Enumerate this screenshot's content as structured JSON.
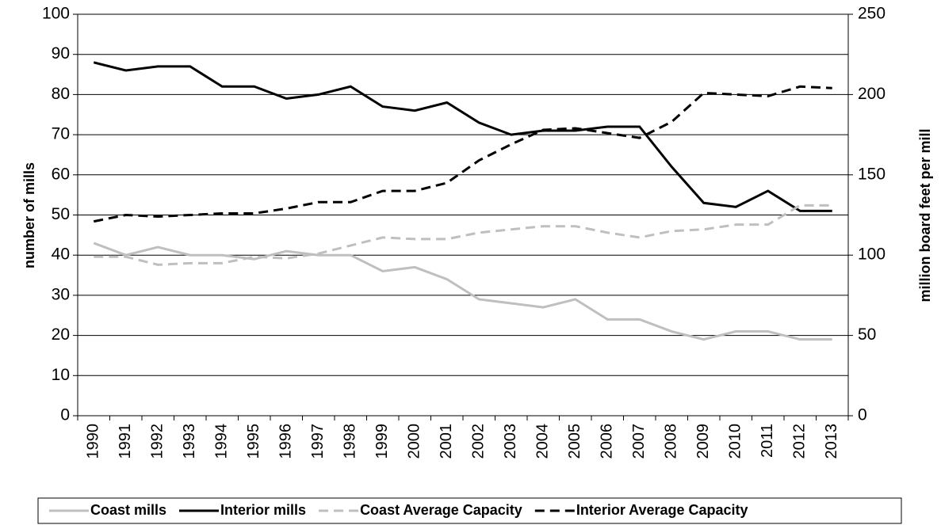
{
  "chart_data": {
    "type": "line",
    "categories": [
      "1990",
      "1991",
      "1992",
      "1993",
      "1994",
      "1995",
      "1996",
      "1997",
      "1998",
      "1999",
      "2000",
      "2001",
      "2002",
      "2003",
      "2004",
      "2005",
      "2006",
      "2007",
      "2008",
      "2009",
      "2010",
      "2011",
      "2012",
      "2013"
    ],
    "y_label": "number of mills",
    "y2_label": "million board feet per mill",
    "ylim": [
      0,
      100
    ],
    "yticks": [
      0,
      10,
      20,
      30,
      40,
      50,
      60,
      70,
      80,
      90,
      100
    ],
    "y2lim": [
      0,
      250
    ],
    "y2ticks": [
      0,
      50,
      100,
      150,
      200,
      250
    ],
    "grid": true,
    "legend": "bottom",
    "series": [
      {
        "name": "Coast mills",
        "color": "#bfbfbf",
        "dash": "solid",
        "values": [
          43,
          40,
          42,
          40,
          40,
          39,
          41,
          40,
          40,
          36,
          37,
          34,
          29,
          28,
          27,
          29,
          24,
          24,
          21,
          19,
          21,
          21,
          19,
          19
        ]
      },
      {
        "name": "Interior mills",
        "color": "#000000",
        "dash": "solid",
        "values": [
          88,
          86,
          87,
          87,
          82,
          82,
          79,
          80,
          82,
          77,
          76,
          78,
          73,
          70,
          71,
          71,
          72,
          72,
          62,
          53,
          52,
          56,
          51,
          51
        ]
      },
      {
        "name": "Coast Average Capacity",
        "color": "#bfbfbf",
        "dash": "dashed",
        "axis": "y2",
        "values": [
          99,
          99,
          94,
          95,
          95,
          99,
          98,
          101,
          106,
          111,
          110,
          110,
          114,
          116,
          118,
          118,
          114,
          111,
          115,
          116,
          119,
          119,
          131,
          131
        ]
      },
      {
        "name": "Interior Average Capacity",
        "color": "#000000",
        "dash": "dashed",
        "axis": "y2",
        "values": [
          121,
          125,
          124,
          125,
          126,
          126,
          129,
          133,
          133,
          140,
          140,
          145,
          159,
          169,
          178,
          179,
          176,
          173,
          183,
          201,
          200,
          199,
          205,
          204
        ]
      }
    ]
  }
}
